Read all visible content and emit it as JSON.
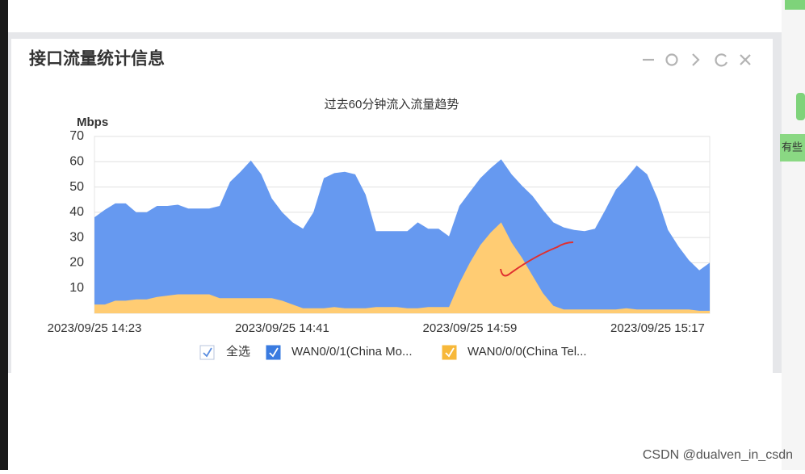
{
  "panel": {
    "title": "接口流量统计信息"
  },
  "watermark": "CSDN @dualven_in_csdn",
  "side_text": "有些",
  "chart_data": {
    "type": "stacked_area",
    "title": "过去60分钟流入流量趋势",
    "y_axis_label": "Mbps",
    "select_all_label": "全选",
    "categories": [
      "2023/09/25 14:23",
      null,
      null,
      null,
      null,
      null,
      null,
      null,
      null,
      null,
      null,
      null,
      null,
      null,
      null,
      null,
      null,
      null,
      "2023/09/25 14:41",
      null,
      null,
      null,
      null,
      null,
      null,
      null,
      null,
      null,
      null,
      null,
      null,
      null,
      null,
      null,
      null,
      null,
      "2023/09/25 14:59",
      null,
      null,
      null,
      null,
      null,
      null,
      null,
      null,
      null,
      null,
      null,
      null,
      null,
      null,
      null,
      null,
      null,
      "2023/09/25 15:17",
      null,
      null,
      null,
      null,
      null
    ],
    "series": [
      {
        "name": "WAN0/0/1(China Mo...",
        "color": "#6699f0",
        "values": [
          34.5,
          37.5,
          38.5,
          38.5,
          34.5,
          34.5,
          36,
          35.5,
          35.5,
          34,
          34,
          34,
          36.5,
          46,
          50,
          54.5,
          49,
          39.5,
          35,
          32.5,
          31.5,
          38,
          51.5,
          53,
          54,
          53,
          45,
          30,
          30,
          30,
          30.5,
          34,
          31,
          31,
          28,
          30.5,
          28,
          26.5,
          25.5,
          25,
          27,
          28.5,
          31.5,
          33,
          33,
          32.5,
          31.5,
          31,
          32,
          39.5,
          47.5,
          51.5,
          57,
          53.5,
          44,
          31.5,
          25,
          19.5,
          16,
          19
        ]
      },
      {
        "name": "WAN0/0/0(China Tel...",
        "color": "#ffcc73",
        "values": [
          3.5,
          3.5,
          5,
          5,
          5.5,
          5.5,
          6.5,
          7,
          7.5,
          7.5,
          7.5,
          7.5,
          6,
          6,
          6,
          6,
          6,
          6,
          5,
          3.5,
          2,
          2,
          2,
          2.5,
          2,
          2,
          2,
          2.5,
          2.5,
          2.5,
          2,
          2,
          2.5,
          2.5,
          2.5,
          12,
          20,
          27,
          32,
          36,
          28,
          22,
          15,
          8,
          3,
          1.5,
          1.5,
          1.5,
          1.5,
          1.5,
          1.5,
          2,
          1.5,
          1.5,
          1.5,
          1.5,
          1.5,
          1.5,
          1,
          1
        ]
      }
    ],
    "ylim": [
      0,
      70
    ],
    "yticks": [
      10,
      20,
      30,
      40,
      50,
      60,
      70
    ],
    "grid": true
  }
}
